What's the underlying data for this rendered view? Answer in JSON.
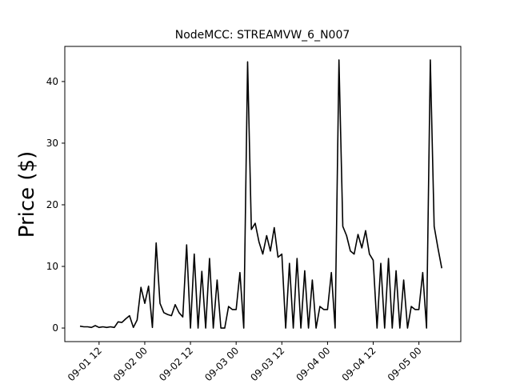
{
  "chart_data": {
    "type": "line",
    "title": "NodeMCC: STREAMVW_6_N007",
    "y_label": "Price ($)",
    "x": [
      "09-01 07",
      "09-01 08",
      "09-01 09",
      "09-01 10",
      "09-01 11",
      "09-01 12",
      "09-01 13",
      "09-01 14",
      "09-01 15",
      "09-01 16",
      "09-01 17",
      "09-01 18",
      "09-01 19",
      "09-01 20",
      "09-01 21",
      "09-01 22",
      "09-01 23",
      "09-02 00",
      "09-02 01",
      "09-02 02",
      "09-02 03",
      "09-02 04",
      "09-02 05",
      "09-02 06",
      "09-02 07",
      "09-02 08",
      "09-02 09",
      "09-02 10",
      "09-02 11",
      "09-02 12",
      "09-02 13",
      "09-02 14",
      "09-02 15",
      "09-02 16",
      "09-02 17",
      "09-02 18",
      "09-02 19",
      "09-02 20",
      "09-02 21",
      "09-02 22",
      "09-02 23",
      "09-03 00",
      "09-03 01",
      "09-03 02",
      "09-03 03",
      "09-03 04",
      "09-03 05",
      "09-03 06",
      "09-03 07",
      "09-03 08",
      "09-03 09",
      "09-03 10",
      "09-03 11",
      "09-03 12",
      "09-03 13",
      "09-03 14",
      "09-03 15",
      "09-03 16",
      "09-03 17",
      "09-03 18",
      "09-03 19",
      "09-03 20",
      "09-03 21",
      "09-03 22",
      "09-03 23",
      "09-04 00",
      "09-04 01",
      "09-04 02",
      "09-04 03",
      "09-04 04",
      "09-04 05",
      "09-04 06",
      "09-04 07",
      "09-04 08",
      "09-04 09",
      "09-04 10",
      "09-04 11",
      "09-04 12",
      "09-04 13",
      "09-04 14",
      "09-04 15",
      "09-04 16",
      "09-04 17",
      "09-04 18",
      "09-04 19",
      "09-04 20",
      "09-04 21",
      "09-04 22",
      "09-04 23",
      "09-05 00",
      "09-05 01",
      "09-05 02",
      "09-05 03",
      "09-05 04",
      "09-05 05",
      "09-05 06"
    ],
    "series": [
      {
        "name": "price",
        "color": "#000000",
        "values": [
          0.3,
          0.2,
          0.2,
          0.1,
          0.4,
          0.1,
          0.2,
          0.1,
          0.2,
          0.1,
          1.0,
          0.9,
          1.5,
          2.0,
          0.1,
          1.3,
          6.6,
          4.0,
          6.8,
          0.1,
          13.8,
          4.0,
          2.5,
          2.2,
          2.0,
          3.8,
          2.5,
          1.8,
          13.5,
          0,
          12.0,
          0,
          9.2,
          0,
          11.3,
          0,
          7.8,
          0,
          0,
          3.5,
          3.0,
          3.0,
          9.0,
          0,
          43.2,
          16.0,
          17.0,
          14.0,
          12.0,
          15.0,
          12.5,
          16.3,
          11.5,
          12.0,
          0,
          10.5,
          0,
          11.3,
          0,
          9.3,
          0,
          7.8,
          0,
          3.5,
          3.0,
          3.0,
          9.0,
          0,
          43.5,
          16.5,
          15.0,
          12.5,
          12.0,
          15.2,
          13.0,
          15.8,
          12.0,
          11.0,
          0,
          10.5,
          0,
          11.3,
          0,
          9.3,
          0,
          7.8,
          0,
          3.5,
          3.0,
          3.0,
          9.0,
          0,
          43.5,
          16.5,
          13.0,
          9.7
        ]
      }
    ],
    "xlim": [
      "09-01 03",
      "09-05 11"
    ],
    "xticks": [
      "09-01 12",
      "09-02 00",
      "09-02 12",
      "09-03 00",
      "09-03 12",
      "09-04 00",
      "09-04 12",
      "09-05 00"
    ],
    "ylim": [
      -2.2,
      45.7
    ],
    "yticks": [
      0,
      10,
      20,
      30,
      40
    ]
  }
}
